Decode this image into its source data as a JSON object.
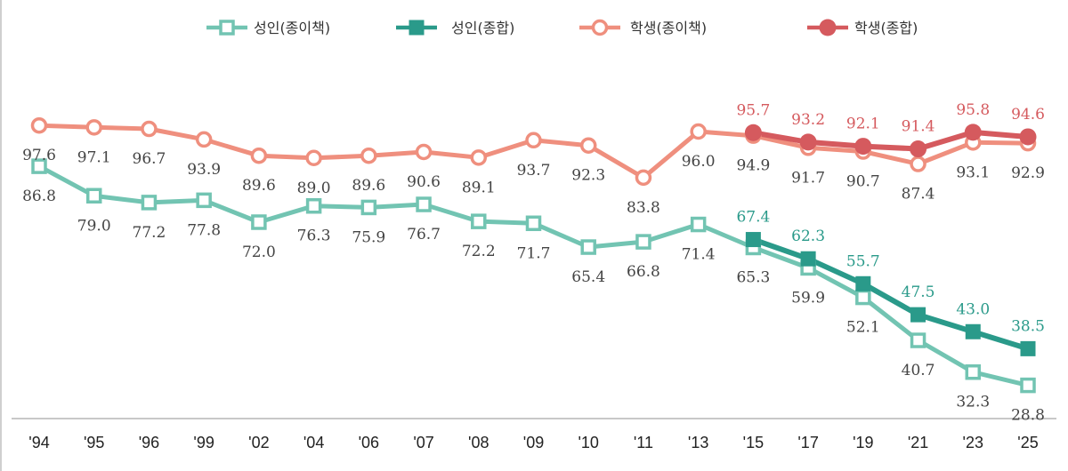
{
  "chart_data": {
    "type": "line",
    "title": "",
    "xlabel": "",
    "ylabel": "",
    "grid": false,
    "legend_position": "top-center",
    "ylim": [
      20,
      100
    ],
    "categories": [
      "'94",
      "'95",
      "'96",
      "'99",
      "'02",
      "'04",
      "'06",
      "'07",
      "'08",
      "'09",
      "'10",
      "'11",
      "'13",
      "'15",
      "'17",
      "'19",
      "'21",
      "'23",
      "'25"
    ],
    "series": [
      {
        "name": "성인(종이책)",
        "color": "#72c4b2",
        "marker": "hollow-square",
        "label_position": "below",
        "label_color": "#444444",
        "values": [
          86.8,
          79.0,
          77.2,
          77.8,
          72.0,
          76.3,
          75.9,
          76.7,
          72.2,
          71.7,
          65.4,
          66.8,
          71.4,
          65.3,
          59.9,
          52.1,
          40.7,
          32.3,
          28.8
        ],
        "labels": [
          "86.8",
          "79.0",
          "77.2",
          "77.8",
          "72.0",
          "76.3",
          "75.9",
          "76.7",
          "72.2",
          "71.7",
          "65.4",
          "66.8",
          "71.4",
          "65.3",
          "59.9",
          "52.1",
          "40.7",
          "32.3",
          "28.8"
        ]
      },
      {
        "name": "성인(종합)",
        "color": "#2a9a8a",
        "marker": "filled-square",
        "label_position": "above",
        "label_color": "#2a9a8a",
        "values": [
          null,
          null,
          null,
          null,
          null,
          null,
          null,
          null,
          null,
          null,
          null,
          null,
          null,
          67.4,
          62.3,
          55.7,
          47.5,
          43.0,
          38.5
        ],
        "labels": [
          null,
          null,
          null,
          null,
          null,
          null,
          null,
          null,
          null,
          null,
          null,
          null,
          null,
          "67.4",
          "62.3",
          "55.7",
          "47.5",
          "43.0",
          "38.5"
        ]
      },
      {
        "name": "학생(종이책)",
        "color": "#ef8f7e",
        "marker": "hollow-circle",
        "label_position": "below",
        "label_color": "#444444",
        "values": [
          97.6,
          97.1,
          96.7,
          93.9,
          89.6,
          89.0,
          89.6,
          90.6,
          89.1,
          93.7,
          92.3,
          83.8,
          96.0,
          94.9,
          91.7,
          90.7,
          87.4,
          93.1,
          92.9
        ],
        "labels": [
          "97.6",
          "97.1",
          "96.7",
          "93.9",
          "89.6",
          "89.0",
          "89.6",
          "90.6",
          "89.1",
          "93.7",
          "92.3",
          "83.8",
          "96.0",
          "94.9",
          "91.7",
          "90.7",
          "87.4",
          "93.1",
          "92.9"
        ]
      },
      {
        "name": "학생(종합)",
        "color": "#d55a5e",
        "marker": "filled-circle",
        "label_position": "above",
        "label_color": "#d55a5e",
        "values": [
          null,
          null,
          null,
          null,
          null,
          null,
          null,
          null,
          null,
          null,
          null,
          null,
          null,
          95.7,
          93.2,
          92.1,
          91.4,
          95.8,
          94.6
        ],
        "labels": [
          null,
          null,
          null,
          null,
          null,
          null,
          null,
          null,
          null,
          null,
          null,
          null,
          null,
          "95.7",
          "93.2",
          "92.1",
          "91.4",
          "95.8",
          "94.6"
        ]
      }
    ]
  }
}
